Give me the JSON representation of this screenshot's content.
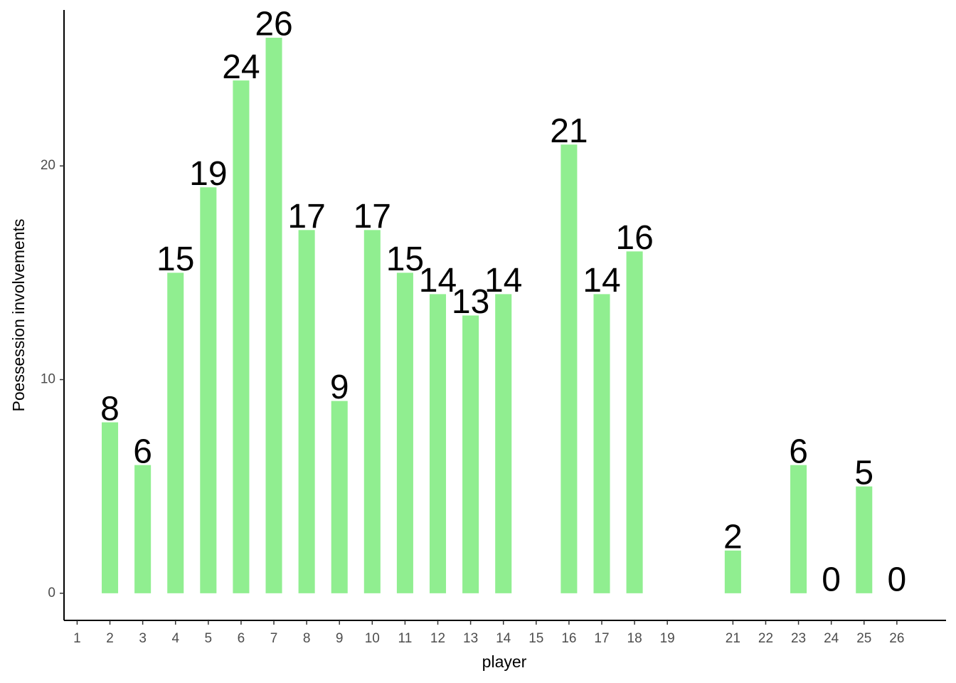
{
  "chart_data": {
    "type": "bar",
    "x_label": "player",
    "y_label": "Poessession involvements",
    "x": [
      2,
      3,
      4,
      5,
      6,
      7,
      8,
      9,
      10,
      11,
      12,
      13,
      14,
      16,
      17,
      18,
      21,
      23,
      24,
      25,
      26
    ],
    "values": [
      8,
      6,
      15,
      19,
      24,
      26,
      17,
      9,
      17,
      15,
      14,
      13,
      14,
      21,
      14,
      16,
      2,
      6,
      0,
      5,
      0
    ],
    "color": "#90ee90",
    "xlim": [
      0.6,
      27.5
    ],
    "xticks": [
      1,
      2,
      3,
      4,
      5,
      6,
      7,
      8,
      9,
      10,
      11,
      12,
      13,
      14,
      15,
      16,
      17,
      18,
      19,
      21,
      22,
      23,
      24,
      25,
      26
    ],
    "ylim": [
      -1.27,
      27.3
    ],
    "yticks": [
      0,
      10,
      20
    ],
    "grid": false
  }
}
